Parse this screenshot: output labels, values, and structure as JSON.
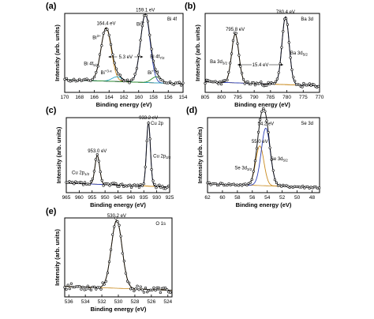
{
  "colors": {
    "experimental": "#000000",
    "envelope": "#111111",
    "peak_a": "#c98a1e",
    "peak_b": "#2b3fb8",
    "background": "#2a8a2a",
    "background_alt": "#b01818",
    "shoulder": "#2aa7c9"
  },
  "chart_data": [
    {
      "type": "line",
      "panel": "(a)",
      "element": "Bi 4f",
      "xlabel": "Binding energy (eV)",
      "ylabel": "Intensity (arb. units)",
      "xlim": [
        170,
        154
      ],
      "xticks": [
        170,
        168,
        166,
        164,
        162,
        160,
        158,
        156,
        154
      ],
      "reversed_x": true,
      "peaks": [
        {
          "position": 164.4,
          "label": "164.4 eV",
          "assignment": "Bi 4f",
          "sub": "5/2",
          "species": "Bi",
          "sup": "3+",
          "amplitude": 0.78,
          "width": 0.7
        },
        {
          "position": 159.1,
          "label": "159.1 eV",
          "assignment": "Bi 4f",
          "sub": "7/2",
          "species": "Bi",
          "sup": "3+",
          "amplitude": 1.0,
          "width": 0.65
        },
        {
          "position": 162.9,
          "label": "",
          "species": "Bi",
          "sup": "+3-x",
          "amplitude": 0.07,
          "width": 0.7
        },
        {
          "position": 157.6,
          "label": "",
          "species": "Bi",
          "sup": "+3-x",
          "amplitude": 0.09,
          "width": 0.65
        }
      ],
      "splitting": "5.3 eV",
      "legend_label": "Bi 4f"
    },
    {
      "type": "line",
      "panel": "(b)",
      "element": "Ba 3d",
      "xlabel": "Binding energy (eV)",
      "ylabel": "Intensity (arb. units)",
      "xlim": [
        805,
        770
      ],
      "xticks": [
        805,
        800,
        795,
        790,
        785,
        780,
        775,
        770
      ],
      "reversed_x": true,
      "peaks": [
        {
          "position": 795.8,
          "label": "795.8 eV",
          "assignment": "Ba 3d",
          "sub": "3/2",
          "amplitude": 0.72,
          "width": 1.1
        },
        {
          "position": 780.4,
          "label": "780.4 eV",
          "assignment": "Ba 3d",
          "sub": "5/2",
          "amplitude": 1.0,
          "width": 1.1
        }
      ],
      "splitting": "15.4 eV",
      "legend_label": "Ba 3d"
    },
    {
      "type": "line",
      "panel": "(c)",
      "element": "Cu 2p",
      "xlabel": "Binding energy (eV)",
      "ylabel": "Intensity (arb. units)",
      "xlim": [
        965,
        925
      ],
      "xticks": [
        965,
        960,
        955,
        950,
        945,
        940,
        935,
        930,
        925
      ],
      "reversed_x": true,
      "peaks": [
        {
          "position": 953.0,
          "label": "953.0 eV",
          "assignment": "Cu 2p",
          "sub": "1/2",
          "amplitude": 0.45,
          "width": 0.9
        },
        {
          "position": 933.2,
          "label": "933.2 eV",
          "assignment": "Cu 2p",
          "sub": "3/2",
          "amplitude": 1.0,
          "width": 0.75
        }
      ],
      "legend_label": "Cu 2p"
    },
    {
      "type": "line",
      "panel": "(d)",
      "element": "Se 3d",
      "xlabel": "Binding energy (eV)",
      "ylabel": "Intensity (arb. units)",
      "xlim": [
        62,
        47
      ],
      "xticks": [
        62,
        60,
        58,
        56,
        54,
        52,
        50,
        48
      ],
      "reversed_x": true,
      "peaks": [
        {
          "position": 55.0,
          "label": "55.0 eV",
          "assignment": "Se 3d",
          "sub": "3/2",
          "amplitude": 0.62,
          "width": 0.55
        },
        {
          "position": 54.2,
          "label": "54.2 eV",
          "assignment": "Se 3d",
          "sub": "5/2",
          "amplitude": 0.9,
          "width": 0.6
        }
      ],
      "legend_label": "Se 3d"
    },
    {
      "type": "line",
      "panel": "(e)",
      "element": "O 1s",
      "xlabel": "Binding energy (eV)",
      "ylabel": "Intensity (arb. units)",
      "xlim": [
        536.5,
        523.5
      ],
      "xticks": [
        536,
        534,
        532,
        530,
        528,
        526,
        524
      ],
      "reversed_x": true,
      "peaks": [
        {
          "position": 530.2,
          "label": "530.2 eV",
          "amplitude": 1.0,
          "width": 0.65
        }
      ],
      "legend_label": "O 1s"
    }
  ]
}
